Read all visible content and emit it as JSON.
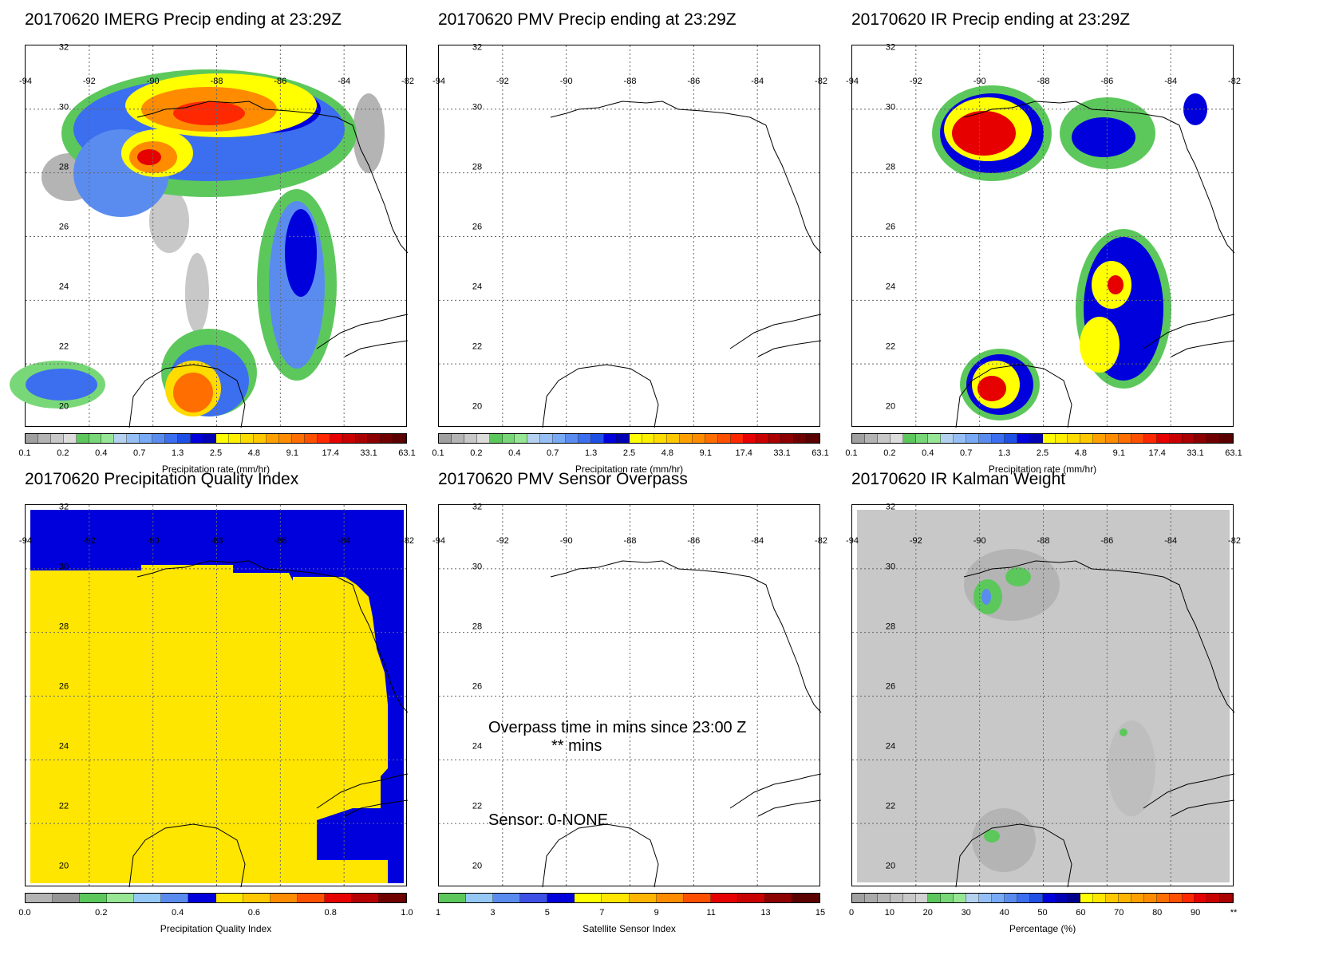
{
  "panels": [
    {
      "title": "20170620 IMERG Precip ending at 23:29Z",
      "colorbar_label": "Precipitation rate (mm/hr)",
      "colorbar_ticks": [
        "0.1",
        "0.2",
        "0.4",
        "0.7",
        "1.3",
        "2.5",
        "4.8",
        "9.1",
        "17.4",
        "33.1",
        "63.1"
      ]
    },
    {
      "title": "20170620 PMV Precip ending at 23:29Z",
      "colorbar_label": "Precipitation rate (mm/hr)",
      "colorbar_ticks": [
        "0.1",
        "0.2",
        "0.4",
        "0.7",
        "1.3",
        "2.5",
        "4.8",
        "9.1",
        "17.4",
        "33.1",
        "63.1"
      ]
    },
    {
      "title": "20170620 IR Precip ending at 23:29Z",
      "colorbar_label": "Precipitation rate (mm/hr)",
      "colorbar_ticks": [
        "0.1",
        "0.2",
        "0.4",
        "0.7",
        "1.3",
        "2.5",
        "4.8",
        "9.1",
        "17.4",
        "33.1",
        "63.1"
      ]
    },
    {
      "title": "20170620 Precipitation Quality Index",
      "colorbar_label": "Precipitation Quality Index",
      "colorbar_ticks": [
        "0.0",
        "0.2",
        "0.4",
        "0.6",
        "0.8",
        "1.0"
      ]
    },
    {
      "title": "20170620 PMV Sensor Overpass",
      "colorbar_label": "Satellite Sensor Index",
      "colorbar_ticks": [
        "1",
        "3",
        "5",
        "7",
        "9",
        "11",
        "13",
        "15"
      ],
      "annotations": {
        "overpass": "Overpass time in mins since 23:00 Z",
        "mins": "** mins",
        "sensor": "Sensor:   0-NONE"
      }
    },
    {
      "title": "20170620 IR Kalman Weight",
      "colorbar_label": "Percentage (%)",
      "colorbar_ticks": [
        "0",
        "10",
        "20",
        "30",
        "40",
        "50",
        "60",
        "70",
        "80",
        "90",
        "**"
      ]
    }
  ],
  "lon_labels": [
    "-94",
    "-92",
    "-90",
    "-88",
    "-86",
    "-84",
    "-82"
  ],
  "lat_labels": [
    "32",
    "30",
    "28",
    "26",
    "24",
    "22",
    "20"
  ],
  "colors": {
    "precip_scale": [
      "#a0a0a0",
      "#b4b4b4",
      "#c8c8c8",
      "#dcdcdc",
      "#5cc85c",
      "#78d878",
      "#96e696",
      "#b4d2f0",
      "#96c0f5",
      "#78aaf5",
      "#5a8cf0",
      "#3c6ef0",
      "#1e50e6",
      "#0000dc",
      "#0000b4",
      "#ffff00",
      "#fff000",
      "#ffdc00",
      "#ffc800",
      "#ffa000",
      "#ff8c00",
      "#ff6e00",
      "#ff5000",
      "#ff2800",
      "#e60000",
      "#c80000",
      "#aa0000",
      "#8c0000",
      "#6e0000",
      "#5a0000"
    ],
    "quality_scale": [
      "#b4b4b4",
      "#969696",
      "#5cc85c",
      "#96e696",
      "#96c8f5",
      "#5a8cf0",
      "#0000dc",
      "#ffe600",
      "#ffc800",
      "#ff8c00",
      "#ff5000",
      "#e60000",
      "#b40000",
      "#6e0000"
    ],
    "sensor_scale": [
      "#5cc85c",
      "#96c8f5",
      "#5a8cf0",
      "#3c50e6",
      "#0000dc",
      "#ffff00",
      "#ffe600",
      "#ffb400",
      "#ff8c00",
      "#ff5000",
      "#e60000",
      "#c80000",
      "#8c0000",
      "#5a0000"
    ],
    "kalman_scale": [
      "#a0a0a0",
      "#aaaaaa",
      "#b4b4b4",
      "#bebebe",
      "#c8c8c8",
      "#d2d2d2",
      "#5cc85c",
      "#78d878",
      "#96e696",
      "#b4d2f0",
      "#96c0f5",
      "#78aaf5",
      "#5a8cf0",
      "#3c6ef0",
      "#1e50e6",
      "#0000dc",
      "#0000b4",
      "#00008c",
      "#ffff00",
      "#ffe600",
      "#ffc800",
      "#ffb400",
      "#ffa000",
      "#ff8c00",
      "#ff6e00",
      "#ff5000",
      "#ff2800",
      "#e60000",
      "#c80000",
      "#aa0000"
    ],
    "quality_blue": "#0000dc",
    "quality_yellow": "#ffe600",
    "kalman_gray": "#c8c8c8"
  }
}
